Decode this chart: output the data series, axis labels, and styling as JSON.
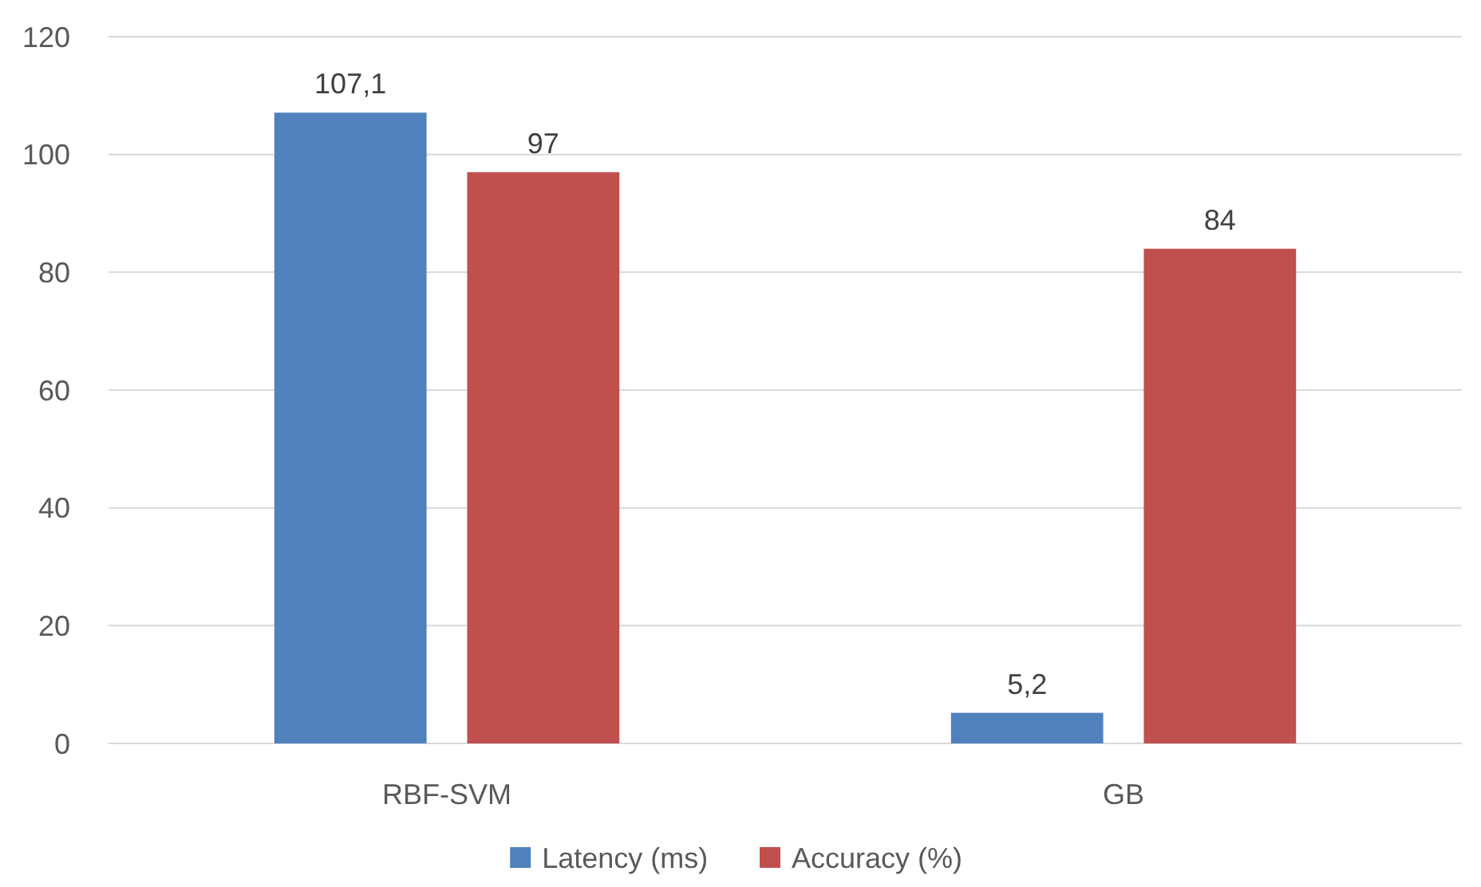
{
  "chart_data": {
    "type": "bar",
    "categories": [
      "RBF-SVM",
      "GB"
    ],
    "series": [
      {
        "name": "Latency (ms)",
        "color": "#4f81bd",
        "values": [
          107.1,
          5.2
        ],
        "value_labels": [
          "107,1",
          "5,2"
        ]
      },
      {
        "name": "Accuracy (%)",
        "color": "#c0504d",
        "values": [
          97,
          84
        ],
        "value_labels": [
          "97",
          "84"
        ]
      }
    ],
    "ylim": [
      0,
      120
    ],
    "yticks": [
      0,
      20,
      40,
      60,
      80,
      100,
      120
    ],
    "grid": "y",
    "legend": "bottom"
  }
}
